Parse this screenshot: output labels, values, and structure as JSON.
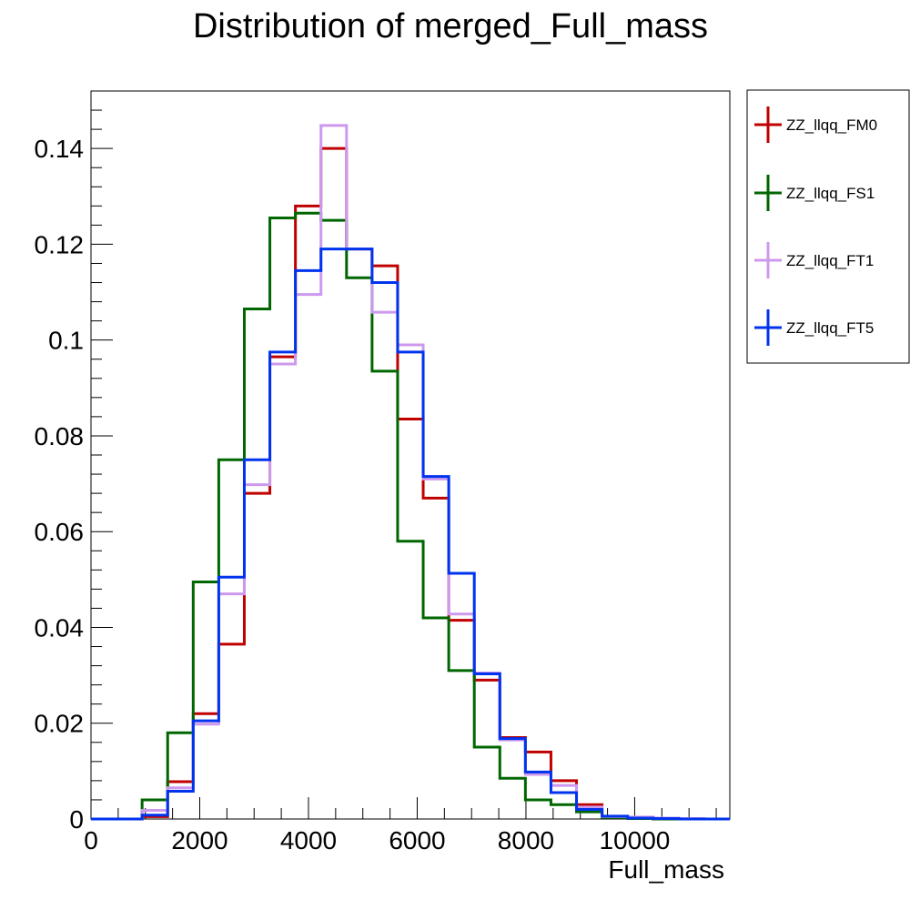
{
  "chart_data": {
    "type": "histogram",
    "title": "Distribution of merged_Full_mass",
    "xlabel": "Full_mass",
    "ylabel": "",
    "xlim": [
      0,
      11750
    ],
    "ylim": [
      0,
      0.152
    ],
    "x_ticks": [
      "0",
      "2000",
      "4000",
      "6000",
      "8000",
      "10000"
    ],
    "y_ticks": [
      "0",
      "0.02",
      "0.04",
      "0.06",
      "0.08",
      "0.1",
      "0.12",
      "0.14"
    ],
    "bin_edges": [
      0,
      470,
      940,
      1410,
      1880,
      2350,
      2820,
      3290,
      3760,
      4230,
      4700,
      5170,
      5640,
      6110,
      6580,
      7050,
      7520,
      7990,
      8460,
      8930,
      9400,
      9870,
      10340,
      10810,
      11280,
      11750
    ],
    "legend_position": "right",
    "series": [
      {
        "name": "ZZ_llqq_FM0",
        "color": "#c00000",
        "values": [
          0,
          0,
          0.0005,
          0.0078,
          0.022,
          0.0365,
          0.068,
          0.0965,
          0.128,
          0.14,
          0.119,
          0.1155,
          0.0835,
          0.067,
          0.0415,
          0.029,
          0.017,
          0.014,
          0.008,
          0.003,
          0.0005,
          0.0003,
          0.0001,
          0,
          0
        ]
      },
      {
        "name": "ZZ_llqq_FS1",
        "color": "#006600",
        "values": [
          0,
          0,
          0.004,
          0.018,
          0.0495,
          0.075,
          0.1065,
          0.1255,
          0.1265,
          0.125,
          0.113,
          0.0935,
          0.058,
          0.042,
          0.031,
          0.015,
          0.0085,
          0.004,
          0.003,
          0.0015,
          0.0003,
          0.0001,
          0,
          0,
          0
        ]
      },
      {
        "name": "ZZ_llqq_FT1",
        "color": "#cc99ee",
        "values": [
          0,
          0,
          0.0018,
          0.0065,
          0.0198,
          0.047,
          0.0698,
          0.095,
          0.1095,
          0.1448,
          0.119,
          0.1058,
          0.099,
          0.071,
          0.0428,
          0.0305,
          0.0165,
          0.0093,
          0.007,
          0.0025,
          0.0005,
          0.0004,
          0.0002,
          0.0001,
          0
        ]
      },
      {
        "name": "ZZ_llqq_FT5",
        "color": "#0033ee",
        "values": [
          0,
          0,
          0.0008,
          0.0058,
          0.0205,
          0.0505,
          0.075,
          0.0975,
          0.1145,
          0.119,
          0.119,
          0.112,
          0.0975,
          0.0715,
          0.0513,
          0.0303,
          0.0168,
          0.0098,
          0.0055,
          0.002,
          0.0006,
          0.0002,
          0.0001,
          0,
          0
        ]
      }
    ]
  }
}
